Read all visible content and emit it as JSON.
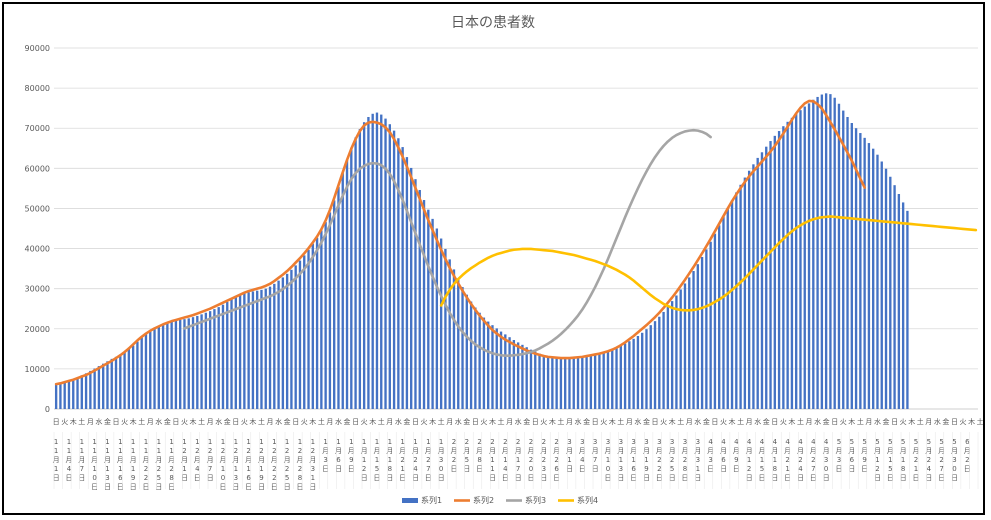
{
  "chart_data": {
    "type": "bar",
    "title": "日本の患者数",
    "xlabel": "",
    "ylabel": "",
    "ylim": [
      0,
      90000
    ],
    "yticks": [
      0,
      10000,
      20000,
      30000,
      40000,
      50000,
      60000,
      70000,
      80000,
      90000
    ],
    "grid": true,
    "legend_position": "bottom",
    "days_shown": 216,
    "weekday_cycle": [
      "日",
      "月",
      "火",
      "水",
      "木",
      "金",
      "土"
    ],
    "weekday_labels_shown": [
      "日",
      "火",
      "木",
      "土",
      "月",
      "水",
      "金",
      "日",
      "火",
      "木",
      "土",
      "月",
      "水",
      "金",
      "日",
      "火",
      "木",
      "土",
      "月",
      "水",
      "金",
      "日",
      "火",
      "木",
      "土",
      "月",
      "水",
      "金",
      "日",
      "火",
      "木",
      "土",
      "月",
      "水",
      "金",
      "日",
      "火",
      "木",
      "土",
      "月",
      "水",
      "金",
      "日",
      "火",
      "木",
      "土",
      "月",
      "水",
      "金",
      "日",
      "火",
      "木",
      "土",
      "月",
      "水",
      "金",
      "日",
      "火",
      "木",
      "土",
      "月",
      "水",
      "金",
      "日",
      "火",
      "木",
      "土",
      "月",
      "水",
      "金",
      "日",
      "火",
      "木",
      "土",
      "月",
      "水",
      "金",
      "日",
      "火",
      "木",
      "土",
      "月",
      "水",
      "金",
      "日",
      "火",
      "木",
      "土",
      "月",
      "水",
      "金",
      "日",
      "火",
      "木",
      "土",
      "月",
      "水",
      "金",
      "日",
      "火",
      "木",
      "土",
      "月",
      "水",
      "金",
      "日",
      "火",
      "木",
      "土",
      "月",
      "水",
      "金",
      "日",
      "火",
      "木",
      "土",
      "月",
      "水",
      "金",
      "日",
      "火"
    ],
    "date_labels": [
      {
        "day": 0,
        "m": "11",
        "d": "1"
      },
      {
        "day": 3,
        "m": "11",
        "d": "4"
      },
      {
        "day": 6,
        "m": "11",
        "d": "7"
      },
      {
        "day": 9,
        "m": "11",
        "d": "10"
      },
      {
        "day": 12,
        "m": "11",
        "d": "13"
      },
      {
        "day": 15,
        "m": "11",
        "d": "16"
      },
      {
        "day": 18,
        "m": "11",
        "d": "19"
      },
      {
        "day": 21,
        "m": "11",
        "d": "22"
      },
      {
        "day": 24,
        "m": "11",
        "d": "25"
      },
      {
        "day": 27,
        "m": "11",
        "d": "28"
      },
      {
        "day": 30,
        "m": "12",
        "d": "1"
      },
      {
        "day": 33,
        "m": "12",
        "d": "4"
      },
      {
        "day": 36,
        "m": "12",
        "d": "7"
      },
      {
        "day": 39,
        "m": "12",
        "d": "10"
      },
      {
        "day": 42,
        "m": "12",
        "d": "13"
      },
      {
        "day": 45,
        "m": "12",
        "d": "16"
      },
      {
        "day": 48,
        "m": "12",
        "d": "19"
      },
      {
        "day": 51,
        "m": "12",
        "d": "22"
      },
      {
        "day": 54,
        "m": "12",
        "d": "25"
      },
      {
        "day": 57,
        "m": "12",
        "d": "28"
      },
      {
        "day": 60,
        "m": "12",
        "d": "31"
      },
      {
        "day": 63,
        "m": "1",
        "d": "3"
      },
      {
        "day": 66,
        "m": "1",
        "d": "6"
      },
      {
        "day": 69,
        "m": "1",
        "d": "9"
      },
      {
        "day": 72,
        "m": "1",
        "d": "12"
      },
      {
        "day": 75,
        "m": "1",
        "d": "15"
      },
      {
        "day": 78,
        "m": "1",
        "d": "18"
      },
      {
        "day": 81,
        "m": "1",
        "d": "21"
      },
      {
        "day": 84,
        "m": "1",
        "d": "24"
      },
      {
        "day": 87,
        "m": "1",
        "d": "27"
      },
      {
        "day": 90,
        "m": "1",
        "d": "30"
      },
      {
        "day": 93,
        "m": "2",
        "d": "2"
      },
      {
        "day": 96,
        "m": "2",
        "d": "5"
      },
      {
        "day": 99,
        "m": "2",
        "d": "8"
      },
      {
        "day": 102,
        "m": "2",
        "d": "11"
      },
      {
        "day": 105,
        "m": "2",
        "d": "14"
      },
      {
        "day": 108,
        "m": "2",
        "d": "17"
      },
      {
        "day": 111,
        "m": "2",
        "d": "20"
      },
      {
        "day": 114,
        "m": "2",
        "d": "23"
      },
      {
        "day": 117,
        "m": "2",
        "d": "26"
      },
      {
        "day": 120,
        "m": "3",
        "d": "1"
      },
      {
        "day": 123,
        "m": "3",
        "d": "4"
      },
      {
        "day": 126,
        "m": "3",
        "d": "7"
      },
      {
        "day": 129,
        "m": "3",
        "d": "10"
      },
      {
        "day": 132,
        "m": "3",
        "d": "13"
      },
      {
        "day": 135,
        "m": "3",
        "d": "16"
      },
      {
        "day": 138,
        "m": "3",
        "d": "19"
      },
      {
        "day": 141,
        "m": "3",
        "d": "22"
      },
      {
        "day": 144,
        "m": "3",
        "d": "25"
      },
      {
        "day": 147,
        "m": "3",
        "d": "28"
      },
      {
        "day": 150,
        "m": "3",
        "d": "31"
      },
      {
        "day": 153,
        "m": "4",
        "d": "3"
      },
      {
        "day": 156,
        "m": "4",
        "d": "6"
      },
      {
        "day": 159,
        "m": "4",
        "d": "9"
      },
      {
        "day": 162,
        "m": "4",
        "d": "12"
      },
      {
        "day": 165,
        "m": "4",
        "d": "15"
      },
      {
        "day": 168,
        "m": "4",
        "d": "18"
      },
      {
        "day": 171,
        "m": "4",
        "d": "21"
      },
      {
        "day": 174,
        "m": "4",
        "d": "24"
      },
      {
        "day": 177,
        "m": "4",
        "d": "27"
      },
      {
        "day": 180,
        "m": "4",
        "d": "30"
      },
      {
        "day": 183,
        "m": "5",
        "d": "3"
      },
      {
        "day": 186,
        "m": "5",
        "d": "6"
      },
      {
        "day": 189,
        "m": "5",
        "d": "9"
      },
      {
        "day": 192,
        "m": "5",
        "d": "12"
      },
      {
        "day": 195,
        "m": "5",
        "d": "15"
      },
      {
        "day": 198,
        "m": "5",
        "d": "18"
      },
      {
        "day": 201,
        "m": "5",
        "d": "21"
      },
      {
        "day": 204,
        "m": "5",
        "d": "24"
      },
      {
        "day": 207,
        "m": "5",
        "d": "27"
      },
      {
        "day": 210,
        "m": "5",
        "d": "30"
      },
      {
        "day": 213,
        "m": "6",
        "d": "2"
      }
    ],
    "month_char": "月",
    "day_char": "日",
    "series": [
      {
        "name": "系列1",
        "kind": "bar",
        "color": "#4472C4",
        "values": [
          6400,
          6500,
          6700,
          7100,
          7300,
          7800,
          8400,
          8900,
          9500,
          10100,
          10700,
          11300,
          11900,
          12500,
          13000,
          13600,
          14300,
          15100,
          15800,
          16800,
          17800,
          18700,
          19400,
          20000,
          20500,
          21000,
          21400,
          21700,
          22000,
          22200,
          22400,
          22600,
          22900,
          23200,
          23600,
          24000,
          24400,
          24900,
          25400,
          26000,
          26700,
          27300,
          27900,
          28400,
          28800,
          29100,
          29300,
          29500,
          29700,
          30000,
          30500,
          31200,
          32000,
          32800,
          33700,
          34700,
          35800,
          37000,
          38300,
          39700,
          41200,
          42700,
          44500,
          46600,
          49000,
          52000,
          55400,
          58800,
          62100,
          65100,
          67700,
          69800,
          71500,
          72800,
          73600,
          73900,
          73400,
          72400,
          71000,
          69400,
          67500,
          65300,
          62800,
          60100,
          57300,
          54600,
          52100,
          49700,
          47400,
          45000,
          42500,
          39900,
          37300,
          34800,
          32500,
          30400,
          28500,
          26800,
          25300,
          24000,
          22800,
          21800,
          20900,
          20100,
          19300,
          18600,
          17900,
          17200,
          16600,
          16000,
          15400,
          14800,
          14300,
          13800,
          13400,
          13100,
          12900,
          12800,
          12700,
          12700,
          12700,
          12800,
          12900,
          13000,
          13100,
          13300,
          13500,
          13800,
          14100,
          14500,
          14900,
          15300,
          15800,
          16300,
          16900,
          17500,
          18200,
          19000,
          19900,
          20900,
          21900,
          23000,
          24200,
          25500,
          26900,
          28300,
          29800,
          31300,
          32800,
          34400,
          36100,
          37900,
          39800,
          41700,
          43700,
          45800,
          47900,
          50000,
          52000,
          54000,
          55900,
          57700,
          59400,
          61000,
          62600,
          64000,
          65400,
          66800,
          68100,
          69300,
          70500,
          71600,
          72600,
          73600,
          74500,
          75400,
          76200,
          77100,
          77800,
          78400,
          78700,
          78500,
          77600,
          76100,
          74400,
          72800,
          71300,
          70000,
          68800,
          67600,
          66300,
          64900,
          63400,
          61700,
          59900,
          57900,
          55800,
          53600,
          51500,
          49400
        ]
      },
      {
        "name": "系列2",
        "kind": "line",
        "color": "#ED7D31",
        "values": [
          6200,
          6400,
          6700,
          7000,
          7300,
          7700,
          8100,
          8500,
          9000,
          9600,
          10200,
          10800,
          11400,
          12000,
          12700,
          13400,
          14200,
          15100,
          16100,
          17100,
          18000,
          18800,
          19500,
          20100,
          20600,
          21100,
          21500,
          21900,
          22200,
          22500,
          22800,
          23100,
          23400,
          23800,
          24200,
          24600,
          25000,
          25500,
          26000,
          26500,
          27000,
          27500,
          28000,
          28500,
          29000,
          29400,
          29700,
          30000,
          30300,
          30700,
          31200,
          31900,
          32700,
          33500,
          34400,
          35400,
          36500,
          37600,
          38800,
          40100,
          41500,
          43000,
          44800,
          47000,
          49600,
          52600,
          55800,
          59000,
          62100,
          64900,
          67300,
          69300,
          70700,
          71400,
          71600,
          71400,
          71000,
          70200,
          69000,
          67300,
          65200,
          62900,
          60400,
          57800,
          55100,
          52400,
          49700,
          47100,
          44600,
          42100,
          39700,
          37400,
          35200,
          33200,
          31300,
          29500,
          27800,
          26200,
          24700,
          23300,
          22000,
          20800,
          19700,
          18800,
          18000,
          17300,
          16700,
          16100,
          15600,
          15100,
          14600,
          14200,
          13800,
          13500,
          13200,
          13000,
          12900,
          12800,
          12700,
          12700,
          12700,
          12800,
          12900,
          13000,
          13200,
          13400,
          13600,
          13800,
          14100,
          14400,
          14800,
          15300,
          15900,
          16600,
          17400,
          18200,
          19100,
          20000,
          20900,
          21900,
          22900,
          24000,
          25200,
          26500,
          27800,
          29200,
          30700,
          32200,
          33800,
          35400,
          37100,
          38800,
          40600,
          42400,
          44300,
          46200,
          48100,
          50000,
          51800,
          53500,
          55100,
          56600,
          58000,
          59300,
          60500,
          61700,
          62900,
          64200,
          65600,
          67100,
          68700,
          70400,
          72100,
          73700,
          75100,
          76200,
          76800,
          76700,
          76000,
          74900,
          73300,
          71500,
          69700,
          67800,
          65900,
          63900,
          61900,
          59700,
          57400,
          55200
        ]
      },
      {
        "name": "系列3",
        "kind": "line",
        "color": "#A5A5A5",
        "start_day": 30,
        "values": [
          20100,
          20500,
          20900,
          21300,
          21700,
          22100,
          22500,
          22900,
          23300,
          23700,
          24100,
          24500,
          24900,
          25300,
          25700,
          26100,
          26500,
          26900,
          27300,
          27700,
          28100,
          28600,
          29200,
          29900,
          30700,
          31600,
          32600,
          33700,
          34900,
          36300,
          37900,
          39600,
          41500,
          43600,
          45900,
          48300,
          50800,
          53200,
          55400,
          57300,
          58800,
          59900,
          60600,
          61100,
          61300,
          61200,
          60800,
          59900,
          58600,
          56800,
          54600,
          52100,
          49400,
          46600,
          43800,
          41000,
          38300,
          35600,
          33000,
          30500,
          28200,
          26000,
          24000,
          22200,
          20600,
          19200,
          18000,
          17000,
          16100,
          15400,
          14800,
          14300,
          13900,
          13600,
          13400,
          13300,
          13300,
          13400,
          13500,
          13700,
          13900,
          14200,
          14600,
          15100,
          15700,
          16300,
          17000,
          17800,
          18700,
          19700,
          20800,
          22000,
          23300,
          24800,
          26500,
          28400,
          30400,
          32600,
          34900,
          37400,
          40000,
          42600,
          45200,
          47800,
          50300,
          52700,
          55000,
          57200,
          59200,
          61100,
          62800,
          64300,
          65600,
          66700,
          67600,
          68300,
          68800,
          69200,
          69400,
          69500,
          69400,
          69100,
          68600,
          67800
        ]
      },
      {
        "name": "系列4",
        "kind": "line",
        "color": "#FFC000",
        "start_day": 90,
        "values": [
          25800,
          27900,
          29700,
          31200,
          32400,
          33400,
          34300,
          35100,
          35800,
          36500,
          37100,
          37700,
          38200,
          38600,
          38900,
          39200,
          39500,
          39700,
          39800,
          39900,
          39900,
          39900,
          39800,
          39700,
          39600,
          39500,
          39400,
          39200,
          39000,
          38800,
          38600,
          38400,
          38100,
          37800,
          37500,
          37200,
          36900,
          36500,
          36100,
          35700,
          35200,
          34700,
          34100,
          33500,
          32800,
          32000,
          31100,
          30200,
          29300,
          28400,
          27600,
          26900,
          26200,
          25700,
          25200,
          24900,
          24700,
          24600,
          24600,
          24700,
          24900,
          25200,
          25600,
          26100,
          26700,
          27300,
          28000,
          28800,
          29700,
          30600,
          31600,
          32600,
          33700,
          34800,
          35900,
          37000,
          38100,
          39200,
          40300,
          41400,
          42400,
          43400,
          44300,
          45100,
          45800,
          46400,
          46900,
          47300,
          47600,
          47800,
          47900,
          48000,
          47900,
          47800,
          47700,
          47600,
          47500,
          47400,
          47300,
          47200,
          47100,
          47000,
          46900,
          46800,
          46700,
          46600,
          46500,
          46400,
          46300,
          46200,
          46100,
          46000,
          45900,
          45800,
          45700,
          45600,
          45500,
          45400,
          45300,
          45200,
          45100,
          45000,
          44900,
          44800,
          44700,
          44600
        ]
      }
    ]
  }
}
